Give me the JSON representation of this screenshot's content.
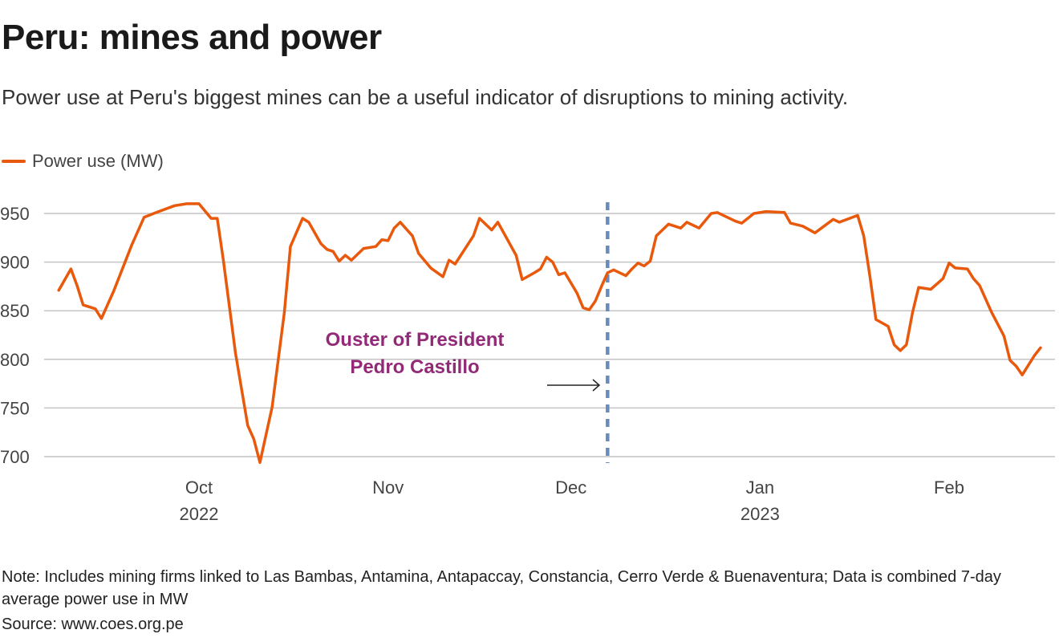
{
  "header": {
    "title": "Peru: mines and power",
    "subtitle": "Power use at Peru's biggest mines can be a useful indicator of disruptions to mining activity."
  },
  "footer": {
    "note": "Note: Includes mining firms linked to Las Bambas, Antamina, Antapaccay, Constancia, Cerro Verde & Buenaventura; Data is combined 7-day average power use in MW",
    "source": "Source: www.coes.org.pe"
  },
  "chart_data": {
    "type": "line",
    "title": "Peru: mines and power",
    "xlabel": "",
    "ylabel": "",
    "ylim": [
      700,
      950
    ],
    "yticks": [
      700,
      750,
      800,
      850,
      900,
      950
    ],
    "xticks": [
      {
        "date": "2022-10-01",
        "label": "Oct",
        "year": "2022"
      },
      {
        "date": "2022-11-01",
        "label": "Nov",
        "year": ""
      },
      {
        "date": "2022-12-01",
        "label": "Dec",
        "year": ""
      },
      {
        "date": "2023-01-01",
        "label": "Jan",
        "year": "2023"
      },
      {
        "date": "2023-02-01",
        "label": "Feb",
        "year": ""
      }
    ],
    "grid": true,
    "legend_position": "top-left",
    "colors": {
      "line": "#e8590c",
      "marker": "#6a8cbc",
      "annotation": "#922a78",
      "grid": "#c4c4c4"
    },
    "series": [
      {
        "name": "Power use (MW)",
        "points": [
          [
            "2022-09-08",
            871
          ],
          [
            "2022-09-10",
            893
          ],
          [
            "2022-09-11",
            876
          ],
          [
            "2022-09-12",
            856
          ],
          [
            "2022-09-14",
            852
          ],
          [
            "2022-09-15",
            842
          ],
          [
            "2022-09-17",
            870
          ],
          [
            "2022-09-20",
            918
          ],
          [
            "2022-09-22",
            946
          ],
          [
            "2022-09-24",
            951
          ],
          [
            "2022-09-27",
            958
          ],
          [
            "2022-09-29",
            960
          ],
          [
            "2022-10-01",
            960
          ],
          [
            "2022-10-03",
            945
          ],
          [
            "2022-10-04",
            945
          ],
          [
            "2022-10-05",
            902
          ],
          [
            "2022-10-07",
            806
          ],
          [
            "2022-10-09",
            732
          ],
          [
            "2022-10-10",
            718
          ],
          [
            "2022-10-11",
            694
          ],
          [
            "2022-10-13",
            751
          ],
          [
            "2022-10-15",
            848
          ],
          [
            "2022-10-16",
            916
          ],
          [
            "2022-10-18",
            945
          ],
          [
            "2022-10-19",
            941
          ],
          [
            "2022-10-21",
            919
          ],
          [
            "2022-10-22",
            913
          ],
          [
            "2022-10-23",
            911
          ],
          [
            "2022-10-24",
            901
          ],
          [
            "2022-10-25",
            907
          ],
          [
            "2022-10-26",
            902
          ],
          [
            "2022-10-28",
            914
          ],
          [
            "2022-10-30",
            916
          ],
          [
            "2022-10-31",
            923
          ],
          [
            "2022-11-01",
            922
          ],
          [
            "2022-11-02",
            935
          ],
          [
            "2022-11-03",
            941
          ],
          [
            "2022-11-05",
            927
          ],
          [
            "2022-11-06",
            909
          ],
          [
            "2022-11-08",
            894
          ],
          [
            "2022-11-10",
            885
          ],
          [
            "2022-11-11",
            902
          ],
          [
            "2022-11-12",
            898
          ],
          [
            "2022-11-15",
            927
          ],
          [
            "2022-11-16",
            945
          ],
          [
            "2022-11-18",
            933
          ],
          [
            "2022-11-19",
            941
          ],
          [
            "2022-11-22",
            907
          ],
          [
            "2022-11-23",
            882
          ],
          [
            "2022-11-25",
            889
          ],
          [
            "2022-11-26",
            893
          ],
          [
            "2022-11-27",
            905
          ],
          [
            "2022-11-28",
            900
          ],
          [
            "2022-11-29",
            887
          ],
          [
            "2022-11-30",
            889
          ],
          [
            "2022-12-02",
            868
          ],
          [
            "2022-12-03",
            853
          ],
          [
            "2022-12-04",
            851
          ],
          [
            "2022-12-05",
            860
          ],
          [
            "2022-12-06",
            875
          ],
          [
            "2022-12-07",
            889
          ],
          [
            "2022-12-08",
            892
          ],
          [
            "2022-12-10",
            886
          ],
          [
            "2022-12-11",
            893
          ],
          [
            "2022-12-12",
            899
          ],
          [
            "2022-12-13",
            896
          ],
          [
            "2022-12-14",
            901
          ],
          [
            "2022-12-15",
            927
          ],
          [
            "2022-12-17",
            939
          ],
          [
            "2022-12-19",
            935
          ],
          [
            "2022-12-20",
            941
          ],
          [
            "2022-12-22",
            935
          ],
          [
            "2022-12-24",
            950
          ],
          [
            "2022-12-25",
            951
          ],
          [
            "2022-12-28",
            942
          ],
          [
            "2022-12-29",
            940
          ],
          [
            "2022-12-31",
            950
          ],
          [
            "2023-01-02",
            952
          ],
          [
            "2023-01-05",
            951
          ],
          [
            "2023-01-06",
            940
          ],
          [
            "2023-01-08",
            937
          ],
          [
            "2023-01-10",
            930
          ],
          [
            "2023-01-13",
            944
          ],
          [
            "2023-01-14",
            941
          ],
          [
            "2023-01-17",
            948
          ],
          [
            "2023-01-18",
            927
          ],
          [
            "2023-01-19",
            886
          ],
          [
            "2023-01-20",
            841
          ],
          [
            "2023-01-22",
            834
          ],
          [
            "2023-01-23",
            815
          ],
          [
            "2023-01-24",
            809
          ],
          [
            "2023-01-25",
            815
          ],
          [
            "2023-01-26",
            848
          ],
          [
            "2023-01-27",
            874
          ],
          [
            "2023-01-29",
            872
          ],
          [
            "2023-01-31",
            883
          ],
          [
            "2023-02-01",
            899
          ],
          [
            "2023-02-02",
            894
          ],
          [
            "2023-02-04",
            893
          ],
          [
            "2023-02-05",
            883
          ],
          [
            "2023-02-06",
            876
          ],
          [
            "2023-02-08",
            848
          ],
          [
            "2023-02-10",
            824
          ],
          [
            "2023-02-11",
            799
          ],
          [
            "2023-02-12",
            793
          ],
          [
            "2023-02-13",
            784
          ],
          [
            "2023-02-15",
            804
          ],
          [
            "2023-02-16",
            812
          ]
        ]
      }
    ],
    "annotations": [
      {
        "date": "2022-12-07",
        "line1": "Ouster of President",
        "line2": "Pedro Castillo",
        "style": "dashed-vertical-line-with-arrow"
      }
    ]
  }
}
